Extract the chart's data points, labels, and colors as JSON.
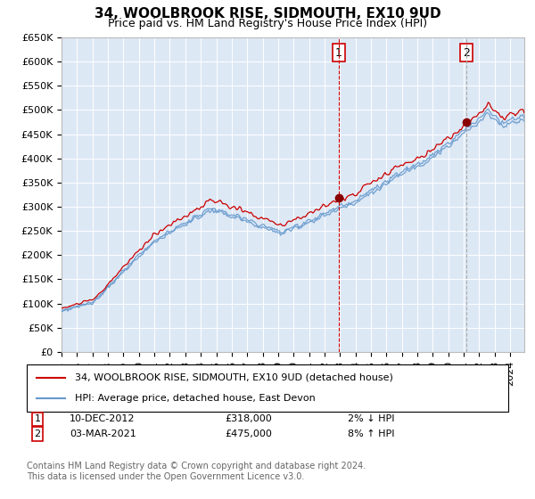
{
  "title": "34, WOOLBROOK RISE, SIDMOUTH, EX10 9UD",
  "subtitle": "Price paid vs. HM Land Registry's House Price Index (HPI)",
  "legend_line1": "34, WOOLBROOK RISE, SIDMOUTH, EX10 9UD (detached house)",
  "legend_line2": "HPI: Average price, detached house, East Devon",
  "hpi_color": "#6699cc",
  "price_color": "#cc0000",
  "background_color": "#dde8f5",
  "grid_color": "#ffffff",
  "vline1_color": "#cc0000",
  "vline1_style": "--",
  "vline2_color": "#aaaaaa",
  "vline2_style": "--",
  "ylim_min": 0,
  "ylim_max": 650000,
  "ytick_step": 50000,
  "sale1_year": 2012,
  "sale1_month": 12,
  "sale1_price": 318000,
  "sale1_label": "1",
  "sale1_date_str": "10-DEC-2012",
  "sale1_pct": "2% ↓ HPI",
  "sale2_year": 2021,
  "sale2_month": 3,
  "sale2_price": 475000,
  "sale2_label": "2",
  "sale2_date_str": "03-MAR-2021",
  "sale2_pct": "8% ↑ HPI",
  "footnote": "Contains HM Land Registry data © Crown copyright and database right 2024.\nThis data is licensed under the Open Government Licence v3.0.",
  "title_fontsize": 11,
  "subtitle_fontsize": 9,
  "tick_fontsize": 8,
  "legend_fontsize": 8,
  "annot_fontsize": 8,
  "footnote_fontsize": 7
}
